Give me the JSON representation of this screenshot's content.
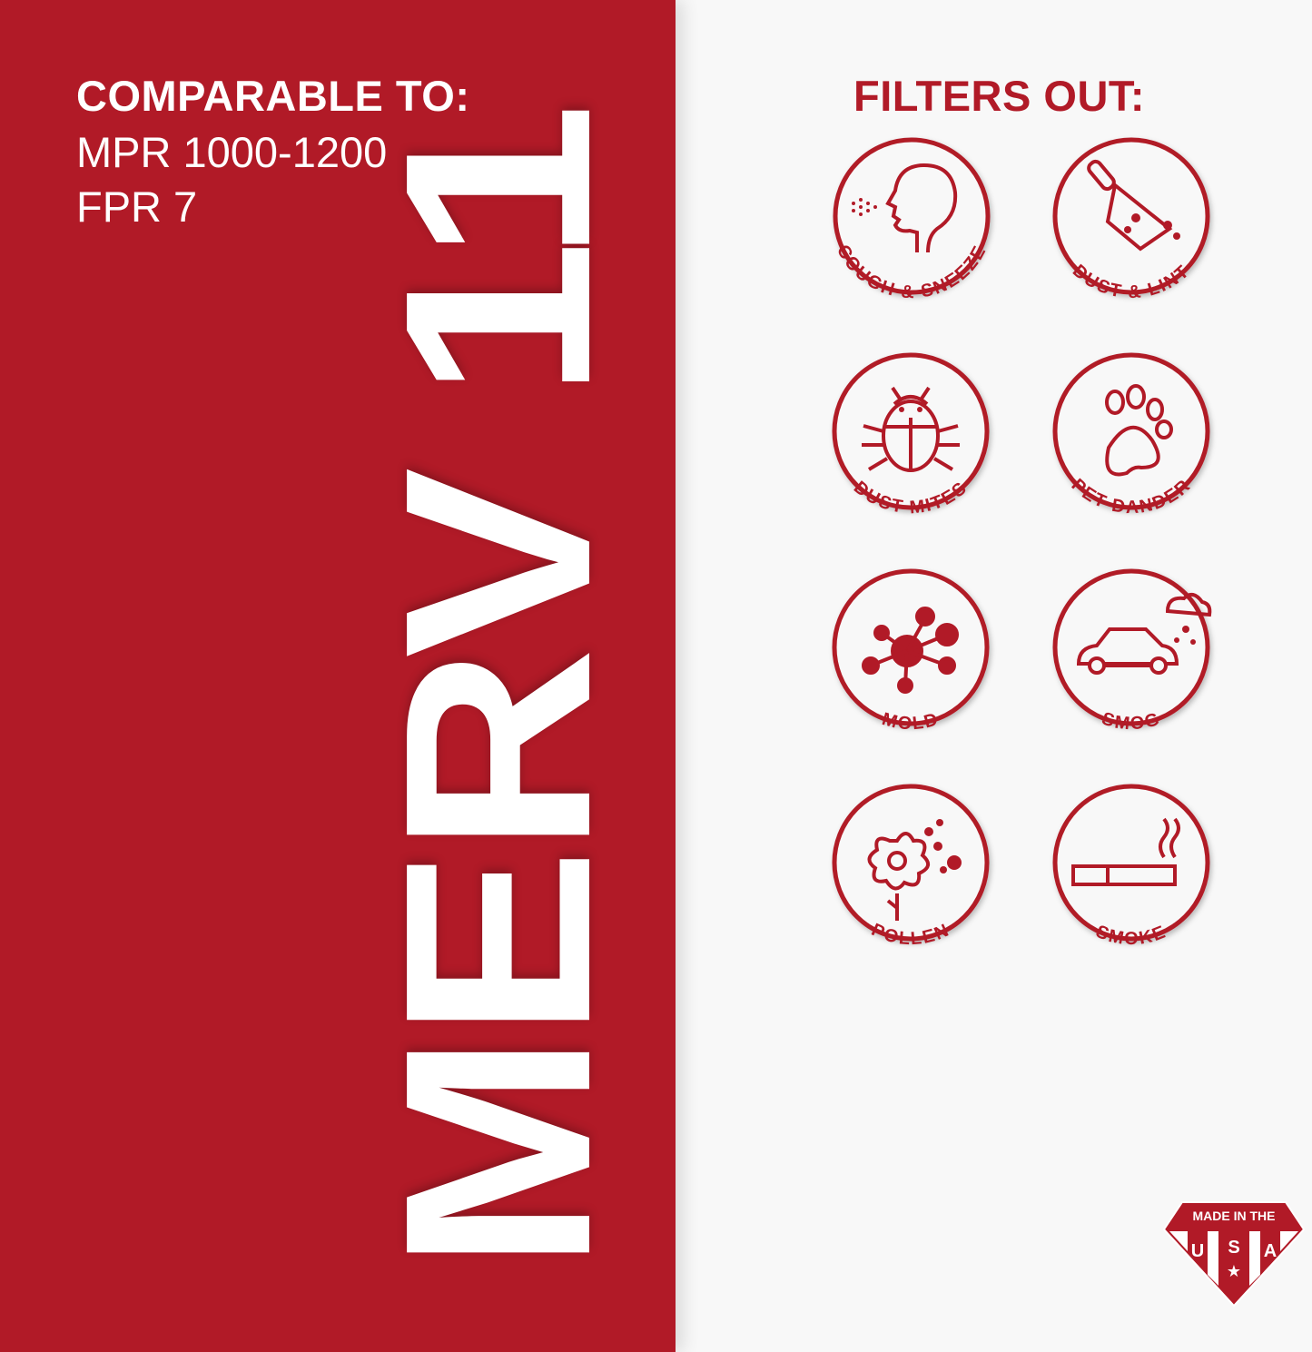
{
  "left_panel": {
    "heading": "COMPARABLE TO:",
    "line1": "MPR 1000-1200",
    "line2": "FPR 7",
    "rating": "MERV 11",
    "background_color": "#b11a27"
  },
  "right_panel": {
    "heading": "FILTERS OUT:",
    "accent_color": "#b11a27",
    "items": [
      {
        "label": "COUGH & SNEEZE",
        "icon": "cough-sneeze-icon"
      },
      {
        "label": "DUST & LINT",
        "icon": "dustpan-icon"
      },
      {
        "label": "DUST MITES",
        "icon": "bug-icon"
      },
      {
        "label": "PET DANDER",
        "icon": "paw-icon"
      },
      {
        "label": "MOLD",
        "icon": "mold-spore-icon"
      },
      {
        "label": "SMOG",
        "icon": "car-smog-icon"
      },
      {
        "label": "POLLEN",
        "icon": "flower-icon"
      },
      {
        "label": "SMOKE",
        "icon": "cigarette-icon"
      }
    ]
  },
  "badge": {
    "top": "MADE IN THE",
    "letters": [
      "U",
      "S",
      "A"
    ]
  }
}
